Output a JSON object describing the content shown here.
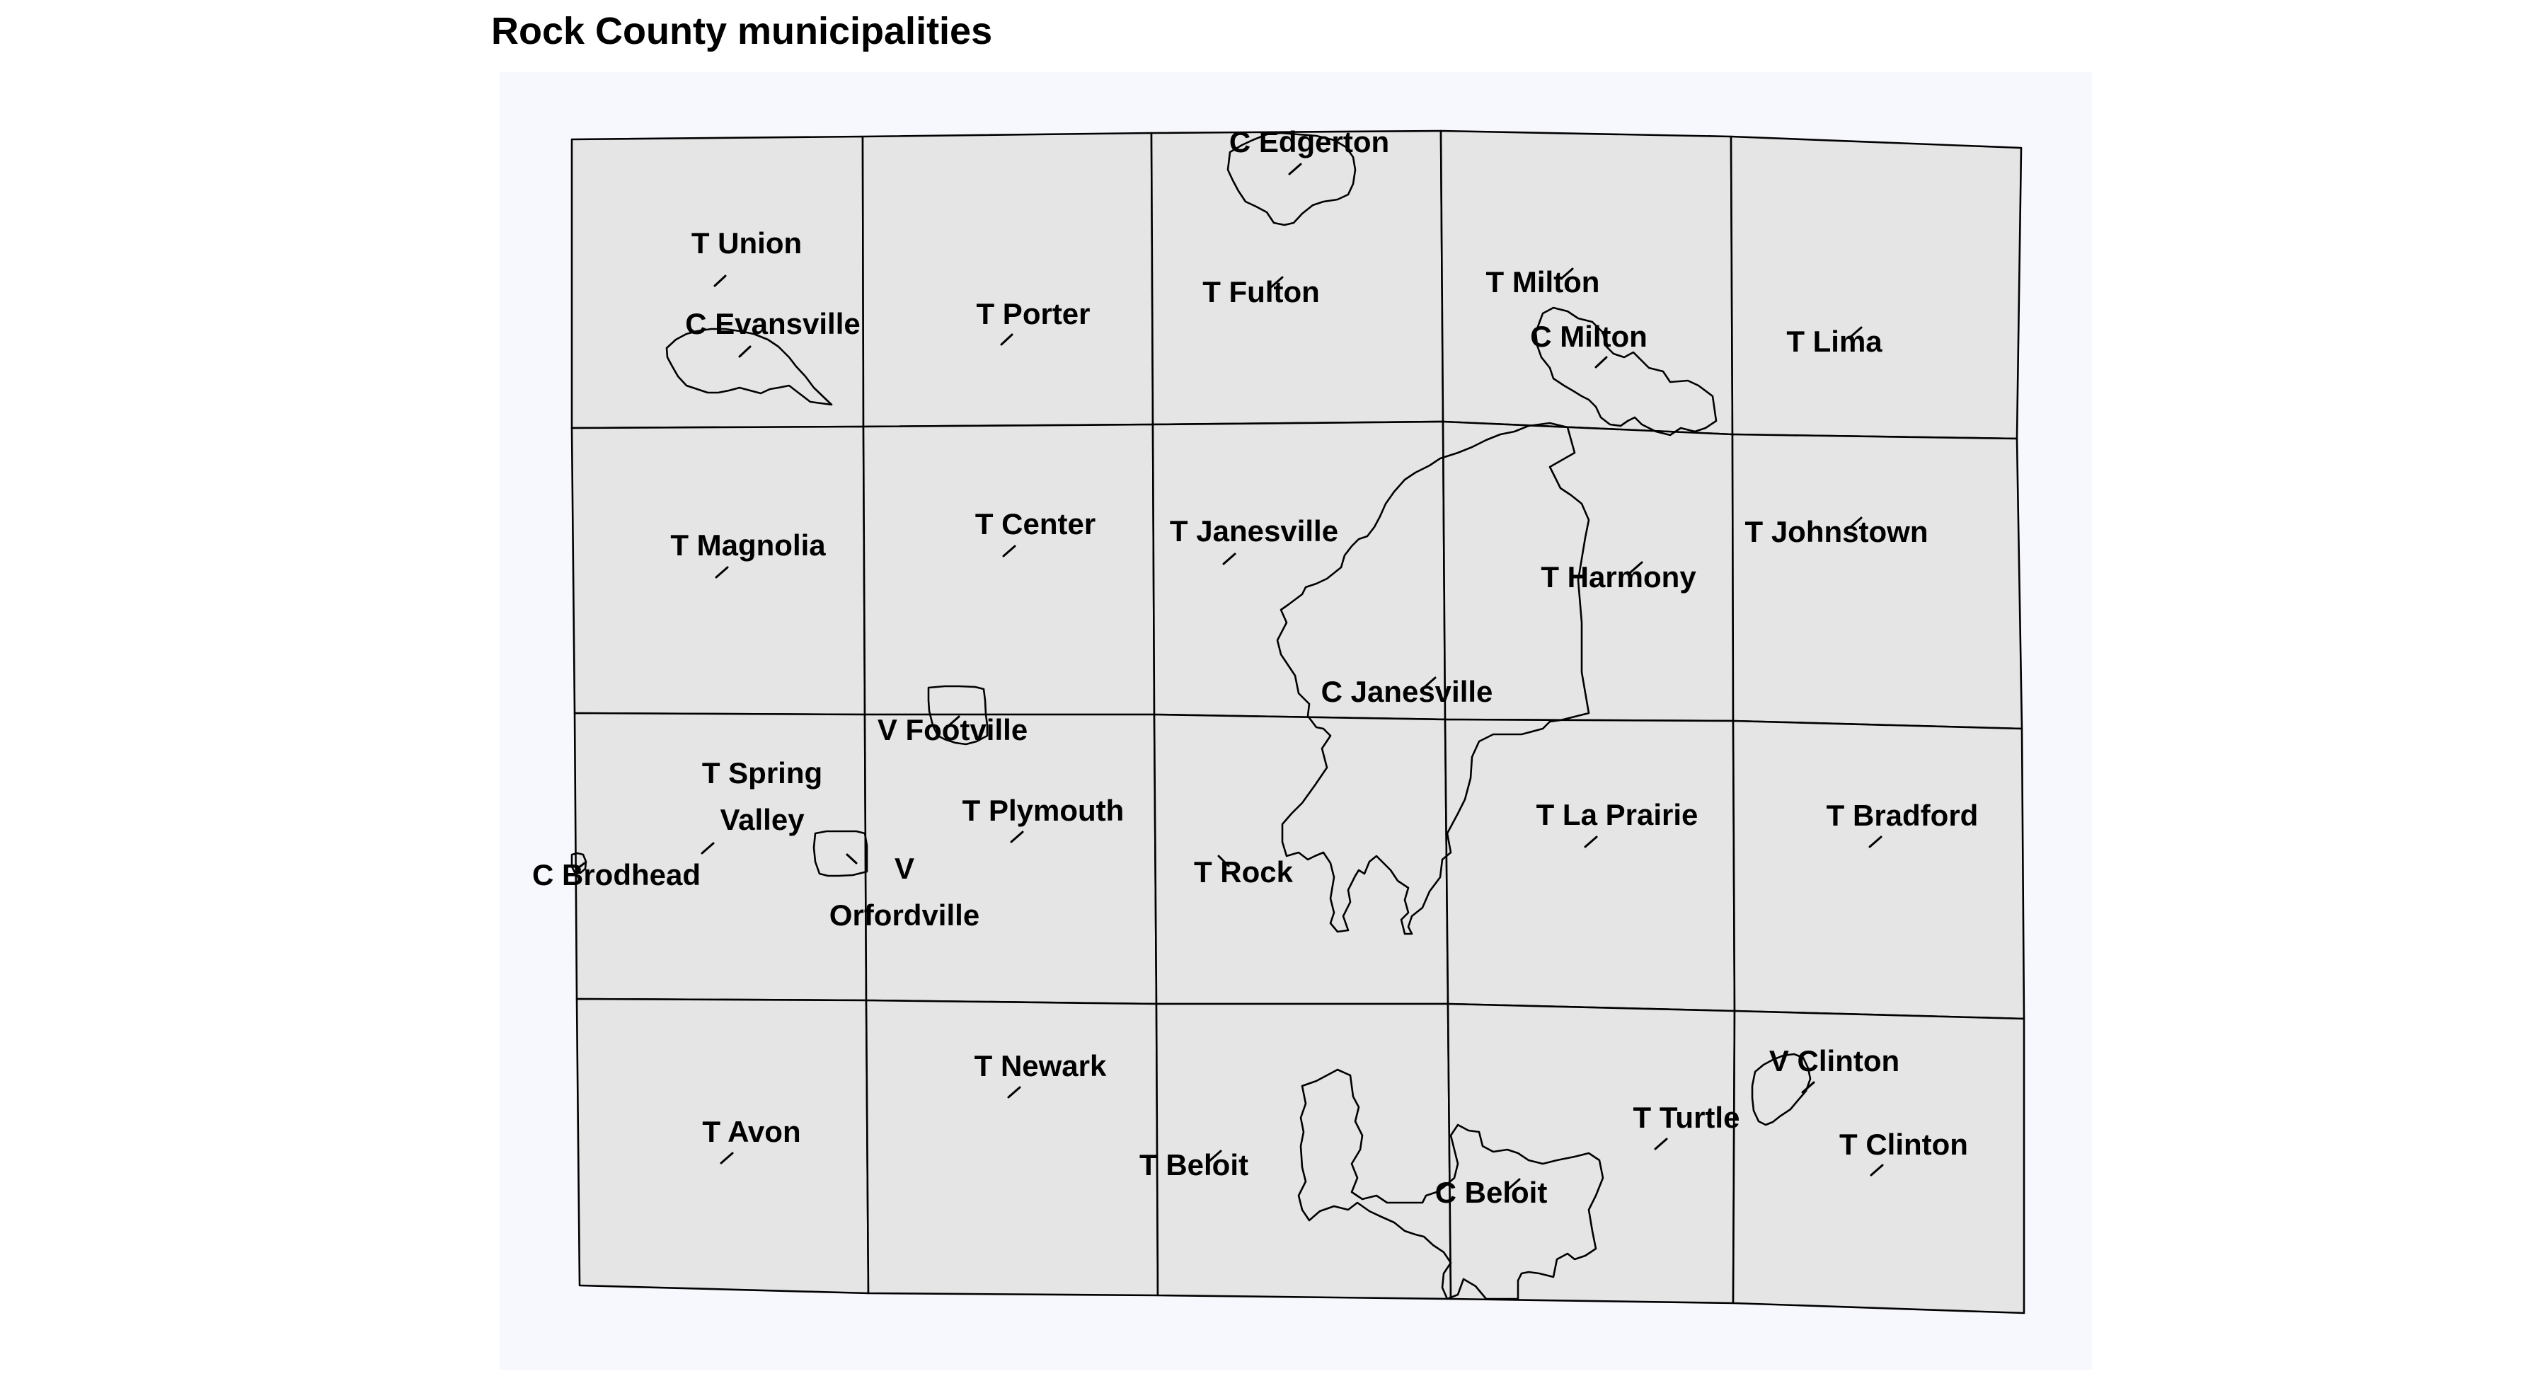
{
  "map": {
    "title": "Rock County municipalities",
    "colors": {
      "panel_background": "#f7f8fd",
      "municipality_fill": "#e5e5e5",
      "boundary_stroke": "#000000",
      "label_text": "#000000"
    }
  },
  "labels": [
    {
      "key": "t-union",
      "lines": [
        "T Union"
      ]
    },
    {
      "key": "c-evansville",
      "lines": [
        "C Evansville"
      ]
    },
    {
      "key": "t-porter",
      "lines": [
        "T Porter"
      ]
    },
    {
      "key": "c-edgerton",
      "lines": [
        "C Edgerton"
      ]
    },
    {
      "key": "t-fulton",
      "lines": [
        "T Fulton"
      ]
    },
    {
      "key": "t-milton",
      "lines": [
        "T Milton"
      ]
    },
    {
      "key": "c-milton",
      "lines": [
        "C Milton"
      ]
    },
    {
      "key": "t-lima",
      "lines": [
        "T Lima"
      ]
    },
    {
      "key": "t-magnolia",
      "lines": [
        "T Magnolia"
      ]
    },
    {
      "key": "t-center",
      "lines": [
        "T Center"
      ]
    },
    {
      "key": "t-janesville",
      "lines": [
        "T Janesville"
      ]
    },
    {
      "key": "t-harmony",
      "lines": [
        "T Harmony"
      ]
    },
    {
      "key": "t-johnstown",
      "lines": [
        "T Johnstown"
      ]
    },
    {
      "key": "c-janesville",
      "lines": [
        "C Janesville"
      ]
    },
    {
      "key": "v-footville",
      "lines": [
        "V Footville"
      ]
    },
    {
      "key": "t-spring-valley",
      "lines": [
        "T Spring",
        "Valley"
      ]
    },
    {
      "key": "c-brodhead",
      "lines": [
        "C Brodhead"
      ]
    },
    {
      "key": "v-orfordville",
      "lines": [
        "V",
        "Orfordville"
      ]
    },
    {
      "key": "t-plymouth",
      "lines": [
        "T Plymouth"
      ]
    },
    {
      "key": "t-rock",
      "lines": [
        "T Rock"
      ]
    },
    {
      "key": "t-la-prairie",
      "lines": [
        "T La Prairie"
      ]
    },
    {
      "key": "t-bradford",
      "lines": [
        "T Bradford"
      ]
    },
    {
      "key": "t-newark",
      "lines": [
        "T Newark"
      ]
    },
    {
      "key": "t-avon",
      "lines": [
        "T Avon"
      ]
    },
    {
      "key": "t-beloit",
      "lines": [
        "T Beloit"
      ]
    },
    {
      "key": "c-beloit",
      "lines": [
        "C Beloit"
      ]
    },
    {
      "key": "t-turtle",
      "lines": [
        "T Turtle"
      ]
    },
    {
      "key": "v-clinton",
      "lines": [
        "V Clinton"
      ]
    },
    {
      "key": "t-clinton",
      "lines": [
        "T Clinton"
      ]
    }
  ]
}
